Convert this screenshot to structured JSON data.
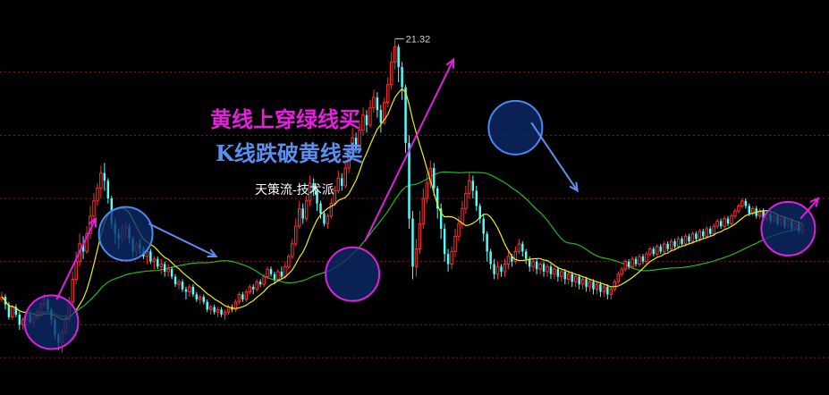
{
  "chart_data": {
    "type": "candlestick",
    "annotations": {
      "line1": "黄线上穿绿线买",
      "line2": "K线跌破黄线卖",
      "line3": "天策流-技术派"
    },
    "peak_label": "21.32",
    "colors": {
      "background": "#000000",
      "up": "#ff3030",
      "down": "#54ffff",
      "yellow_ma": "#f0f000",
      "green_ma": "#22b822",
      "grid": "#8a1a1a",
      "buy_circle_stroke": "#e020e0",
      "sell_circle_stroke": "#4a8af0",
      "circle_fill": "#0b2a6a",
      "arrow_magenta": "#e020e0",
      "arrow_blue": "#5b8ff0"
    },
    "ylim": [
      7.5,
      22.5
    ],
    "xlim": [
      0,
      232
    ],
    "grid_lines_y": [
      20,
      17.5,
      15,
      12.5,
      10,
      8.7
    ],
    "candles": [
      [
        11.0,
        11.1,
        11.3,
        10.9
      ],
      [
        11.1,
        10.8,
        11.2,
        10.6
      ],
      [
        10.8,
        10.3,
        10.9,
        10.2
      ],
      [
        10.3,
        10.7,
        10.8,
        10.2
      ],
      [
        10.7,
        10.4,
        10.8,
        10.3
      ],
      [
        10.4,
        10.0,
        10.5,
        9.8
      ],
      [
        10.0,
        10.2,
        10.3,
        9.8
      ],
      [
        10.2,
        10.4,
        10.5,
        10.0
      ],
      [
        10.4,
        10.1,
        10.6,
        10.0
      ],
      [
        10.1,
        10.3,
        10.4,
        9.9
      ],
      [
        10.3,
        10.5,
        10.6,
        10.2
      ],
      [
        10.5,
        10.8,
        10.9,
        10.4
      ],
      [
        10.8,
        11.0,
        11.2,
        10.7
      ],
      [
        11.0,
        10.6,
        11.1,
        10.5
      ],
      [
        10.6,
        10.2,
        10.7,
        10.0
      ],
      [
        10.2,
        9.6,
        10.3,
        9.4
      ],
      [
        9.6,
        9.3,
        9.7,
        9.0
      ],
      [
        9.3,
        9.7,
        9.8,
        8.9
      ],
      [
        9.7,
        10.2,
        10.4,
        9.6
      ],
      [
        10.2,
        10.9,
        11.1,
        10.1
      ],
      [
        10.9,
        11.8,
        12.1,
        10.8
      ],
      [
        11.8,
        12.5,
        12.9,
        11.6
      ],
      [
        12.5,
        13.2,
        13.6,
        12.3
      ],
      [
        13.2,
        12.9,
        13.5,
        12.6
      ],
      [
        12.9,
        13.6,
        13.9,
        12.8
      ],
      [
        13.6,
        14.3,
        14.7,
        13.4
      ],
      [
        14.3,
        14.9,
        15.2,
        14.0
      ],
      [
        14.9,
        15.4,
        15.6,
        14.7
      ],
      [
        15.4,
        16.0,
        16.3,
        15.0
      ],
      [
        16.0,
        15.7,
        16.4,
        15.3
      ],
      [
        15.7,
        15.0,
        15.8,
        14.8
      ],
      [
        15.0,
        14.0,
        15.1,
        13.8
      ],
      [
        14.0,
        13.6,
        14.2,
        13.2
      ],
      [
        13.6,
        13.4,
        13.8,
        13.0
      ],
      [
        13.4,
        13.8,
        14.0,
        13.2
      ],
      [
        13.8,
        13.9,
        14.1,
        13.4
      ],
      [
        13.9,
        13.4,
        14.0,
        13.2
      ],
      [
        13.4,
        12.9,
        13.5,
        12.7
      ],
      [
        12.9,
        13.2,
        13.3,
        12.7
      ],
      [
        13.2,
        13.0,
        13.4,
        12.8
      ],
      [
        13.0,
        12.7,
        13.1,
        12.6
      ],
      [
        12.7,
        12.9,
        13.0,
        12.4
      ],
      [
        12.9,
        12.5,
        13.0,
        12.4
      ],
      [
        12.5,
        12.6,
        12.7,
        12.2
      ],
      [
        12.6,
        12.3,
        12.7,
        12.2
      ],
      [
        12.3,
        12.4,
        12.6,
        12.0
      ],
      [
        12.4,
        12.1,
        12.5,
        11.9
      ],
      [
        12.1,
        12.2,
        12.4,
        11.9
      ],
      [
        12.2,
        11.9,
        12.3,
        11.8
      ],
      [
        11.9,
        11.6,
        12.0,
        11.5
      ],
      [
        11.6,
        11.7,
        11.8,
        11.4
      ],
      [
        11.7,
        11.4,
        11.8,
        11.3
      ],
      [
        11.4,
        11.3,
        11.5,
        11.0
      ],
      [
        11.3,
        11.5,
        11.6,
        11.1
      ],
      [
        11.5,
        11.2,
        11.6,
        11.1
      ],
      [
        11.2,
        11.0,
        11.3,
        10.9
      ],
      [
        11.0,
        11.1,
        11.2,
        10.8
      ],
      [
        11.1,
        10.9,
        11.2,
        10.8
      ],
      [
        10.9,
        10.6,
        11.0,
        10.5
      ],
      [
        10.6,
        10.7,
        10.8,
        10.4
      ],
      [
        10.7,
        10.5,
        10.8,
        10.4
      ],
      [
        10.5,
        10.6,
        10.7,
        10.3
      ],
      [
        10.6,
        10.4,
        10.7,
        10.3
      ],
      [
        10.4,
        10.5,
        10.6,
        10.2
      ],
      [
        10.5,
        10.7,
        10.8,
        10.4
      ],
      [
        10.7,
        10.6,
        10.8,
        10.5
      ],
      [
        10.6,
        10.9,
        11.0,
        10.5
      ],
      [
        10.9,
        11.2,
        11.3,
        10.8
      ],
      [
        11.2,
        11.0,
        11.3,
        10.9
      ],
      [
        11.0,
        11.3,
        11.4,
        10.9
      ],
      [
        11.3,
        11.5,
        11.6,
        11.2
      ],
      [
        11.5,
        11.4,
        11.6,
        11.2
      ],
      [
        11.4,
        11.7,
        11.8,
        11.3
      ],
      [
        11.7,
        11.6,
        11.8,
        11.5
      ],
      [
        11.6,
        11.9,
        12.0,
        11.5
      ],
      [
        11.9,
        12.2,
        12.3,
        11.8
      ],
      [
        12.2,
        12.0,
        12.3,
        11.9
      ],
      [
        12.0,
        11.8,
        12.1,
        11.6
      ],
      [
        11.8,
        12.1,
        12.2,
        11.7
      ],
      [
        12.1,
        11.9,
        12.3,
        11.8
      ],
      [
        11.9,
        12.3,
        12.5,
        11.8
      ],
      [
        12.3,
        12.7,
        12.8,
        12.2
      ],
      [
        12.7,
        13.2,
        13.4,
        12.6
      ],
      [
        13.2,
        13.9,
        14.2,
        13.1
      ],
      [
        13.9,
        14.6,
        14.9,
        13.8
      ],
      [
        14.6,
        14.2,
        14.8,
        14.0
      ],
      [
        14.2,
        14.9,
        15.1,
        14.1
      ],
      [
        14.9,
        15.6,
        15.9,
        14.7
      ],
      [
        15.6,
        15.3,
        15.8,
        15.1
      ],
      [
        15.3,
        14.8,
        15.4,
        14.5
      ],
      [
        14.8,
        14.4,
        14.9,
        14.2
      ],
      [
        14.4,
        14.0,
        14.5,
        13.9
      ],
      [
        14.0,
        14.3,
        14.4,
        13.8
      ],
      [
        14.3,
        14.8,
        15.0,
        14.2
      ],
      [
        14.8,
        15.3,
        15.5,
        14.7
      ],
      [
        15.3,
        15.8,
        16.1,
        15.2
      ],
      [
        15.8,
        15.5,
        16.0,
        15.3
      ],
      [
        15.5,
        16.2,
        16.4,
        15.4
      ],
      [
        16.2,
        16.8,
        17.1,
        16.0
      ],
      [
        16.8,
        17.4,
        17.8,
        16.6
      ],
      [
        17.4,
        17.0,
        17.6,
        16.8
      ],
      [
        17.0,
        17.7,
        18.0,
        16.9
      ],
      [
        17.7,
        18.3,
        18.6,
        17.5
      ],
      [
        18.3,
        17.9,
        18.5,
        17.6
      ],
      [
        17.9,
        18.6,
        18.9,
        17.8
      ],
      [
        18.6,
        19.0,
        19.3,
        18.4
      ],
      [
        19.0,
        18.5,
        19.2,
        18.2
      ],
      [
        18.5,
        18.0,
        18.7,
        17.6
      ],
      [
        18.0,
        18.8,
        19.0,
        17.9
      ],
      [
        18.8,
        19.5,
        19.8,
        18.6
      ],
      [
        19.5,
        20.4,
        20.8,
        19.3
      ],
      [
        20.4,
        21.0,
        21.32,
        20.1
      ],
      [
        21.0,
        20.2,
        21.1,
        19.6
      ],
      [
        20.2,
        19.4,
        20.4,
        18.9
      ],
      [
        19.4,
        17.2,
        19.5,
        16.8
      ],
      [
        17.2,
        14.2,
        17.5,
        13.8
      ],
      [
        14.2,
        12.3,
        14.5,
        11.8
      ],
      [
        12.3,
        13.0,
        13.4,
        11.9
      ],
      [
        13.0,
        14.0,
        14.5,
        12.8
      ],
      [
        14.0,
        15.0,
        15.4,
        13.8
      ],
      [
        15.0,
        15.6,
        16.0,
        14.8
      ],
      [
        15.6,
        16.2,
        16.5,
        15.4
      ],
      [
        16.2,
        15.4,
        16.4,
        15.1
      ],
      [
        15.4,
        14.6,
        15.5,
        14.2
      ],
      [
        14.6,
        13.8,
        14.8,
        13.4
      ],
      [
        13.8,
        12.8,
        14.0,
        12.5
      ],
      [
        12.8,
        12.4,
        13.0,
        12.1
      ],
      [
        12.4,
        12.9,
        13.1,
        12.2
      ],
      [
        12.9,
        13.5,
        13.8,
        12.7
      ],
      [
        13.5,
        14.0,
        14.3,
        13.3
      ],
      [
        14.0,
        14.6,
        14.9,
        13.8
      ],
      [
        14.6,
        15.2,
        15.5,
        14.4
      ],
      [
        15.2,
        15.7,
        16.0,
        15.0
      ],
      [
        15.7,
        15.3,
        15.9,
        15.0
      ],
      [
        15.3,
        14.7,
        15.5,
        14.5
      ],
      [
        14.7,
        14.2,
        14.8,
        14.0
      ],
      [
        14.2,
        13.6,
        14.4,
        13.3
      ],
      [
        13.6,
        12.9,
        13.7,
        12.5
      ],
      [
        12.9,
        12.4,
        13.0,
        12.2
      ],
      [
        12.4,
        12.0,
        12.6,
        11.8
      ],
      [
        12.0,
        12.3,
        12.5,
        11.8
      ],
      [
        12.3,
        12.1,
        12.4,
        11.9
      ],
      [
        12.1,
        12.4,
        12.6,
        11.9
      ],
      [
        12.4,
        12.7,
        12.9,
        12.2
      ],
      [
        12.7,
        12.5,
        12.8,
        12.3
      ],
      [
        12.5,
        12.9,
        13.1,
        12.4
      ],
      [
        12.9,
        13.2,
        13.4,
        12.8
      ],
      [
        13.2,
        12.9,
        13.3,
        12.7
      ],
      [
        12.9,
        12.6,
        13.0,
        12.4
      ],
      [
        12.6,
        12.3,
        12.7,
        12.1
      ],
      [
        12.3,
        12.5,
        12.6,
        12.1
      ],
      [
        12.5,
        12.2,
        12.6,
        12.0
      ],
      [
        12.2,
        12.4,
        12.5,
        12.0
      ],
      [
        12.4,
        12.1,
        12.5,
        11.9
      ],
      [
        12.1,
        12.3,
        12.4,
        11.9
      ],
      [
        12.3,
        12.0,
        12.4,
        11.8
      ],
      [
        12.0,
        12.2,
        12.3,
        11.8
      ],
      [
        12.2,
        11.9,
        12.3,
        11.7
      ],
      [
        11.9,
        12.1,
        12.2,
        11.7
      ],
      [
        12.1,
        11.8,
        12.2,
        11.6
      ],
      [
        11.8,
        12.0,
        12.1,
        11.6
      ],
      [
        12.0,
        11.7,
        12.1,
        11.5
      ],
      [
        11.7,
        11.9,
        12.0,
        11.5
      ],
      [
        11.9,
        11.6,
        12.0,
        11.4
      ],
      [
        11.6,
        11.8,
        11.9,
        11.4
      ],
      [
        11.8,
        11.5,
        11.9,
        11.3
      ],
      [
        11.5,
        11.7,
        11.8,
        11.3
      ],
      [
        11.7,
        11.4,
        11.8,
        11.2
      ],
      [
        11.4,
        11.6,
        11.7,
        11.2
      ],
      [
        11.6,
        11.3,
        11.7,
        11.1
      ],
      [
        11.3,
        11.5,
        11.6,
        11.1
      ],
      [
        11.5,
        11.2,
        11.6,
        11.0
      ],
      [
        11.2,
        11.4,
        11.5,
        11.0
      ],
      [
        11.4,
        11.7,
        11.8,
        11.3
      ],
      [
        11.7,
        12.0,
        12.1,
        11.6
      ],
      [
        12.0,
        12.2,
        12.3,
        11.9
      ],
      [
        12.2,
        12.5,
        12.6,
        12.1
      ],
      [
        12.5,
        12.3,
        12.6,
        12.2
      ],
      [
        12.3,
        12.6,
        12.7,
        12.2
      ],
      [
        12.6,
        12.4,
        12.7,
        12.3
      ],
      [
        12.4,
        12.7,
        12.8,
        12.3
      ],
      [
        12.7,
        12.5,
        12.8,
        12.4
      ],
      [
        12.5,
        12.8,
        12.9,
        12.4
      ],
      [
        12.8,
        13.0,
        13.1,
        12.7
      ],
      [
        13.0,
        12.8,
        13.1,
        12.7
      ],
      [
        12.8,
        13.1,
        13.2,
        12.7
      ],
      [
        13.1,
        12.9,
        13.2,
        12.8
      ],
      [
        12.9,
        13.2,
        13.3,
        12.8
      ],
      [
        13.2,
        13.0,
        13.3,
        12.9
      ],
      [
        13.0,
        13.3,
        13.4,
        12.9
      ],
      [
        13.3,
        13.1,
        13.4,
        13.0
      ],
      [
        13.1,
        13.4,
        13.5,
        13.0
      ],
      [
        13.4,
        13.2,
        13.5,
        13.1
      ],
      [
        13.2,
        13.5,
        13.6,
        13.1
      ],
      [
        13.5,
        13.3,
        13.6,
        13.2
      ],
      [
        13.3,
        13.6,
        13.7,
        13.2
      ],
      [
        13.6,
        13.4,
        13.7,
        13.3
      ],
      [
        13.4,
        13.7,
        13.8,
        13.3
      ],
      [
        13.7,
        13.5,
        13.8,
        13.4
      ],
      [
        13.5,
        13.8,
        13.9,
        13.4
      ],
      [
        13.8,
        13.6,
        13.9,
        13.5
      ],
      [
        13.6,
        13.9,
        14.0,
        13.5
      ],
      [
        13.9,
        14.1,
        14.2,
        13.8
      ],
      [
        14.1,
        13.9,
        14.2,
        13.8
      ],
      [
        13.9,
        14.2,
        14.3,
        13.8
      ],
      [
        14.2,
        14.0,
        14.3,
        13.9
      ],
      [
        14.0,
        14.3,
        14.4,
        13.9
      ],
      [
        14.3,
        14.5,
        14.6,
        14.2
      ],
      [
        14.5,
        14.7,
        14.8,
        14.4
      ],
      [
        14.7,
        14.9,
        15.0,
        14.6
      ],
      [
        14.9,
        14.7,
        15.0,
        14.6
      ],
      [
        14.7,
        14.4,
        14.8,
        14.3
      ],
      [
        14.4,
        14.6,
        14.7,
        14.3
      ],
      [
        14.6,
        14.3,
        14.7,
        14.2
      ],
      [
        14.3,
        14.5,
        14.6,
        14.2
      ],
      [
        14.5,
        14.2,
        14.6,
        14.1
      ],
      [
        14.2,
        14.4,
        14.5,
        14.1
      ],
      [
        14.4,
        14.1,
        14.5,
        14.0
      ],
      [
        14.1,
        14.3,
        14.4,
        14.0
      ],
      [
        14.3,
        14.0,
        14.4,
        13.9
      ],
      [
        14.0,
        14.2,
        14.3,
        13.9
      ],
      [
        14.2,
        13.9,
        14.3,
        13.8
      ],
      [
        13.9,
        14.1,
        14.2,
        13.8
      ],
      [
        14.1,
        13.8,
        14.2,
        13.7
      ],
      [
        13.8,
        14.0,
        14.1,
        13.7
      ],
      [
        14.0,
        13.7,
        14.1,
        13.6
      ],
      [
        13.7,
        13.9,
        14.0,
        13.6
      ]
    ],
    "circles": [
      {
        "x_index": 14,
        "price": 10.1,
        "type": "buy"
      },
      {
        "x_index": 35,
        "price": 13.6,
        "type": "sell"
      },
      {
        "x_index": 99,
        "price": 12.0,
        "type": "buy"
      },
      {
        "x_index": 145,
        "price": 17.8,
        "type": "sell"
      },
      {
        "x_index": 222,
        "price": 13.8,
        "type": "buy"
      }
    ],
    "arrows": [
      {
        "from": [
          16,
          11.0
        ],
        "to": [
          27,
          14.2
        ],
        "type": "magenta"
      },
      {
        "from": [
          42,
          14.0
        ],
        "to": [
          61,
          12.7
        ],
        "type": "blue"
      },
      {
        "from": [
          103,
          13.3
        ],
        "to": [
          128,
          20.5
        ],
        "type": "magenta"
      },
      {
        "from": [
          150,
          18.0
        ],
        "to": [
          163,
          15.3
        ],
        "type": "blue"
      },
      {
        "from": [
          226,
          14.2
        ],
        "to": [
          231,
          15.0
        ],
        "type": "magenta"
      }
    ]
  }
}
